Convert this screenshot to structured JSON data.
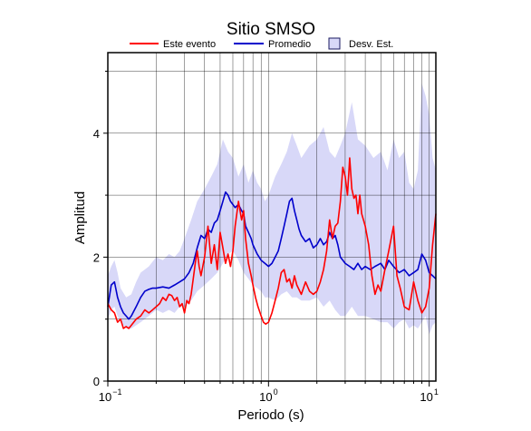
{
  "chart_data": {
    "type": "line",
    "title": "Sitio SMSO",
    "xlabel": "Periodo (s)",
    "ylabel": "Amplitud",
    "x_scale": "log",
    "xlim": [
      0.1,
      11
    ],
    "ylim": [
      0,
      5.3
    ],
    "x_ticks": [
      {
        "value": 0.1,
        "base": "10",
        "exp": "−1"
      },
      {
        "value": 1,
        "base": "10",
        "exp": "0"
      },
      {
        "value": 10,
        "base": "10",
        "exp": "1"
      }
    ],
    "y_ticks": [
      0,
      2,
      4
    ],
    "grid": true,
    "legend_position": "top",
    "colors": {
      "event": "#ff0000",
      "mean": "#0000cc",
      "band": "#d8d8f8",
      "band_edge": "#1a1a60"
    },
    "series": [
      {
        "name": "Este evento",
        "kind": "line",
        "x": [
          0.1,
          0.105,
          0.11,
          0.115,
          0.12,
          0.125,
          0.13,
          0.135,
          0.14,
          0.15,
          0.16,
          0.17,
          0.18,
          0.19,
          0.2,
          0.21,
          0.22,
          0.23,
          0.24,
          0.25,
          0.26,
          0.27,
          0.28,
          0.29,
          0.3,
          0.31,
          0.32,
          0.33,
          0.34,
          0.35,
          0.36,
          0.37,
          0.38,
          0.4,
          0.42,
          0.44,
          0.46,
          0.48,
          0.5,
          0.52,
          0.54,
          0.56,
          0.58,
          0.6,
          0.62,
          0.65,
          0.68,
          0.7,
          0.72,
          0.75,
          0.78,
          0.8,
          0.83,
          0.86,
          0.9,
          0.93,
          0.96,
          1.0,
          1.05,
          1.1,
          1.15,
          1.2,
          1.25,
          1.3,
          1.35,
          1.4,
          1.45,
          1.5,
          1.6,
          1.7,
          1.8,
          1.9,
          2.0,
          2.1,
          2.2,
          2.3,
          2.4,
          2.5,
          2.6,
          2.7,
          2.8,
          2.9,
          3.0,
          3.1,
          3.2,
          3.3,
          3.4,
          3.5,
          3.6,
          3.7,
          3.8,
          4.0,
          4.2,
          4.4,
          4.6,
          4.8,
          5.0,
          5.3,
          5.6,
          6.0,
          6.3,
          6.6,
          7.0,
          7.5,
          8.0,
          8.5,
          9.0,
          9.5,
          10.0,
          10.5,
          11.0
        ],
        "y": [
          1.25,
          1.15,
          1.1,
          0.95,
          1.0,
          0.85,
          0.88,
          0.85,
          0.9,
          1.0,
          1.05,
          1.15,
          1.1,
          1.15,
          1.2,
          1.25,
          1.35,
          1.3,
          1.4,
          1.38,
          1.3,
          1.35,
          1.2,
          1.25,
          1.1,
          1.3,
          1.25,
          1.4,
          1.65,
          1.9,
          2.1,
          1.85,
          1.7,
          2.0,
          2.5,
          1.9,
          2.2,
          1.8,
          2.4,
          2.15,
          1.9,
          2.05,
          1.85,
          2.1,
          2.5,
          2.9,
          2.6,
          2.75,
          2.3,
          1.9,
          1.7,
          1.55,
          1.35,
          1.2,
          1.05,
          0.95,
          0.92,
          0.95,
          1.1,
          1.3,
          1.5,
          1.75,
          1.8,
          1.6,
          1.65,
          1.5,
          1.7,
          1.55,
          1.4,
          1.6,
          1.45,
          1.4,
          1.45,
          1.6,
          1.8,
          2.1,
          2.6,
          2.3,
          2.5,
          2.55,
          2.9,
          3.45,
          3.3,
          3.0,
          3.6,
          3.1,
          2.95,
          3.0,
          2.7,
          3.0,
          2.7,
          2.5,
          2.2,
          1.7,
          1.4,
          1.55,
          1.45,
          1.8,
          2.1,
          2.5,
          1.7,
          1.5,
          1.2,
          1.15,
          1.6,
          1.3,
          1.1,
          1.2,
          1.5,
          2.2,
          2.7
        ]
      },
      {
        "name": "Promedio",
        "kind": "line",
        "x": [
          0.1,
          0.105,
          0.11,
          0.115,
          0.12,
          0.125,
          0.13,
          0.135,
          0.14,
          0.15,
          0.16,
          0.17,
          0.18,
          0.19,
          0.2,
          0.22,
          0.24,
          0.26,
          0.28,
          0.3,
          0.32,
          0.34,
          0.36,
          0.38,
          0.4,
          0.42,
          0.44,
          0.46,
          0.48,
          0.5,
          0.52,
          0.54,
          0.56,
          0.58,
          0.6,
          0.62,
          0.65,
          0.68,
          0.7,
          0.72,
          0.75,
          0.78,
          0.8,
          0.85,
          0.9,
          0.95,
          1.0,
          1.05,
          1.1,
          1.15,
          1.2,
          1.25,
          1.3,
          1.35,
          1.4,
          1.45,
          1.5,
          1.55,
          1.6,
          1.7,
          1.8,
          1.9,
          2.0,
          2.1,
          2.2,
          2.3,
          2.4,
          2.5,
          2.6,
          2.7,
          2.8,
          2.9,
          3.0,
          3.2,
          3.4,
          3.6,
          3.8,
          4.0,
          4.3,
          4.6,
          5.0,
          5.3,
          5.6,
          6.0,
          6.5,
          7.0,
          7.5,
          8.0,
          8.5,
          9.0,
          9.5,
          10.0,
          10.5,
          11.0
        ],
        "y": [
          1.2,
          1.55,
          1.6,
          1.35,
          1.2,
          1.1,
          1.05,
          1.0,
          1.05,
          1.2,
          1.35,
          1.45,
          1.48,
          1.5,
          1.5,
          1.52,
          1.5,
          1.55,
          1.6,
          1.65,
          1.75,
          1.9,
          2.15,
          2.35,
          2.3,
          2.45,
          2.4,
          2.55,
          2.6,
          2.75,
          2.9,
          3.05,
          3.0,
          2.9,
          2.85,
          2.8,
          2.85,
          2.75,
          2.7,
          2.5,
          2.4,
          2.3,
          2.2,
          2.05,
          1.95,
          1.9,
          1.85,
          1.9,
          2.0,
          2.1,
          2.3,
          2.5,
          2.7,
          2.9,
          2.95,
          2.75,
          2.6,
          2.45,
          2.35,
          2.25,
          2.3,
          2.15,
          2.2,
          2.3,
          2.2,
          2.25,
          2.4,
          2.3,
          2.35,
          2.2,
          2.0,
          1.95,
          1.9,
          1.85,
          1.8,
          1.9,
          1.8,
          1.85,
          1.8,
          1.85,
          1.9,
          1.8,
          1.95,
          1.85,
          1.75,
          1.8,
          1.7,
          1.75,
          1.8,
          2.05,
          1.95,
          1.75,
          1.7,
          1.65
        ]
      },
      {
        "name": "Desv. Est.",
        "kind": "band",
        "x": [
          0.1,
          0.105,
          0.11,
          0.115,
          0.12,
          0.13,
          0.14,
          0.15,
          0.16,
          0.18,
          0.2,
          0.22,
          0.24,
          0.26,
          0.28,
          0.3,
          0.33,
          0.36,
          0.4,
          0.44,
          0.48,
          0.52,
          0.56,
          0.6,
          0.65,
          0.7,
          0.75,
          0.8,
          0.85,
          0.9,
          0.95,
          1.0,
          1.1,
          1.2,
          1.3,
          1.4,
          1.5,
          1.6,
          1.8,
          2.0,
          2.2,
          2.4,
          2.6,
          2.8,
          3.0,
          3.3,
          3.6,
          4.0,
          4.5,
          5.0,
          5.5,
          6.0,
          6.5,
          7.0,
          7.5,
          8.0,
          8.5,
          9.0,
          9.5,
          10.0,
          10.5,
          11.0
        ],
        "upper": [
          1.7,
          1.85,
          1.95,
          1.75,
          1.5,
          1.35,
          1.4,
          1.6,
          1.75,
          1.85,
          2.0,
          1.95,
          2.05,
          2.0,
          2.1,
          2.3,
          2.6,
          2.9,
          3.1,
          3.3,
          3.5,
          3.9,
          3.7,
          3.6,
          3.3,
          3.5,
          3.2,
          3.4,
          3.2,
          3.1,
          2.9,
          3.0,
          3.3,
          3.5,
          3.7,
          4.0,
          3.8,
          3.6,
          3.8,
          3.9,
          4.1,
          3.7,
          3.6,
          3.8,
          4.0,
          4.5,
          3.9,
          3.8,
          3.6,
          3.7,
          3.4,
          3.9,
          3.6,
          3.7,
          3.2,
          3.1,
          3.4,
          4.8,
          4.6,
          4.3,
          3.6,
          3.4
        ],
        "lower": [
          1.0,
          1.15,
          1.2,
          1.05,
          0.95,
          0.85,
          0.85,
          0.9,
          0.95,
          1.05,
          1.15,
          1.1,
          1.15,
          1.1,
          1.2,
          1.2,
          1.3,
          1.45,
          1.55,
          1.65,
          1.75,
          1.9,
          2.05,
          2.1,
          1.95,
          1.75,
          1.65,
          1.55,
          1.5,
          1.45,
          1.35,
          1.35,
          1.3,
          1.4,
          1.45,
          1.35,
          1.35,
          1.3,
          1.3,
          1.35,
          1.2,
          1.3,
          1.15,
          1.05,
          1.05,
          1.2,
          1.05,
          1.05,
          1.0,
          0.95,
          0.95,
          0.85,
          0.95,
          1.0,
          0.85,
          0.9,
          0.85,
          0.95,
          1.05,
          0.75,
          0.9,
          0.95
        ]
      }
    ]
  }
}
